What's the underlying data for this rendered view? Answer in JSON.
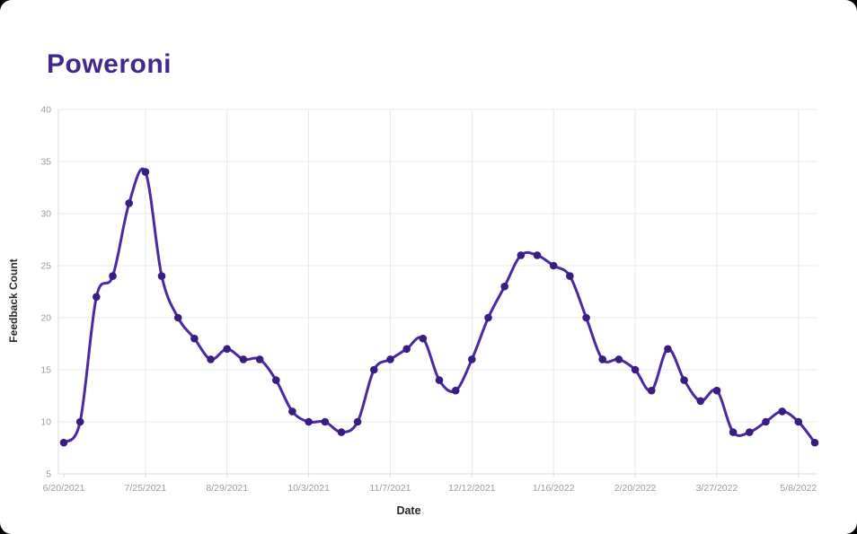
{
  "page": {
    "title": "Poweroni"
  },
  "chart_data": {
    "type": "line",
    "title": "Poweroni",
    "xlabel": "Date",
    "ylabel": "Feedback Count",
    "x_tick_labels": [
      "6/20/2021",
      "7/25/2021",
      "8/29/2021",
      "10/3/2021",
      "11/7/2021",
      "12/12/2021",
      "1/16/2022",
      "2/20/2022",
      "3/27/2022",
      "5/8/2022"
    ],
    "x_tick_indices": [
      0,
      5,
      10,
      15,
      20,
      25,
      30,
      35,
      40,
      45
    ],
    "values": [
      8,
      10,
      22,
      24,
      31,
      34,
      24,
      20,
      18,
      16,
      17,
      16,
      16,
      14,
      11,
      10,
      10,
      9,
      10,
      15,
      16,
      17,
      18,
      14,
      13,
      16,
      20,
      23,
      26,
      26,
      25,
      24,
      20,
      16,
      16,
      15,
      13,
      17,
      14,
      12,
      13,
      9,
      9,
      10,
      11,
      10,
      8
    ],
    "ylim": [
      5,
      40
    ],
    "y_ticks": [
      5,
      10,
      15,
      20,
      25,
      30,
      35,
      40
    ],
    "grid": true,
    "legend": "none",
    "colors": {
      "line": "#4C28A2",
      "point": "#3A1C82",
      "title": "#44278E",
      "grid": "#E9E9E9",
      "axis": "#DEDEDE",
      "tick_label": "#9C9C9C",
      "axis_label": "#2A2A2A",
      "card_bg": "#FFFFFF",
      "page_bg": "#000000"
    }
  }
}
